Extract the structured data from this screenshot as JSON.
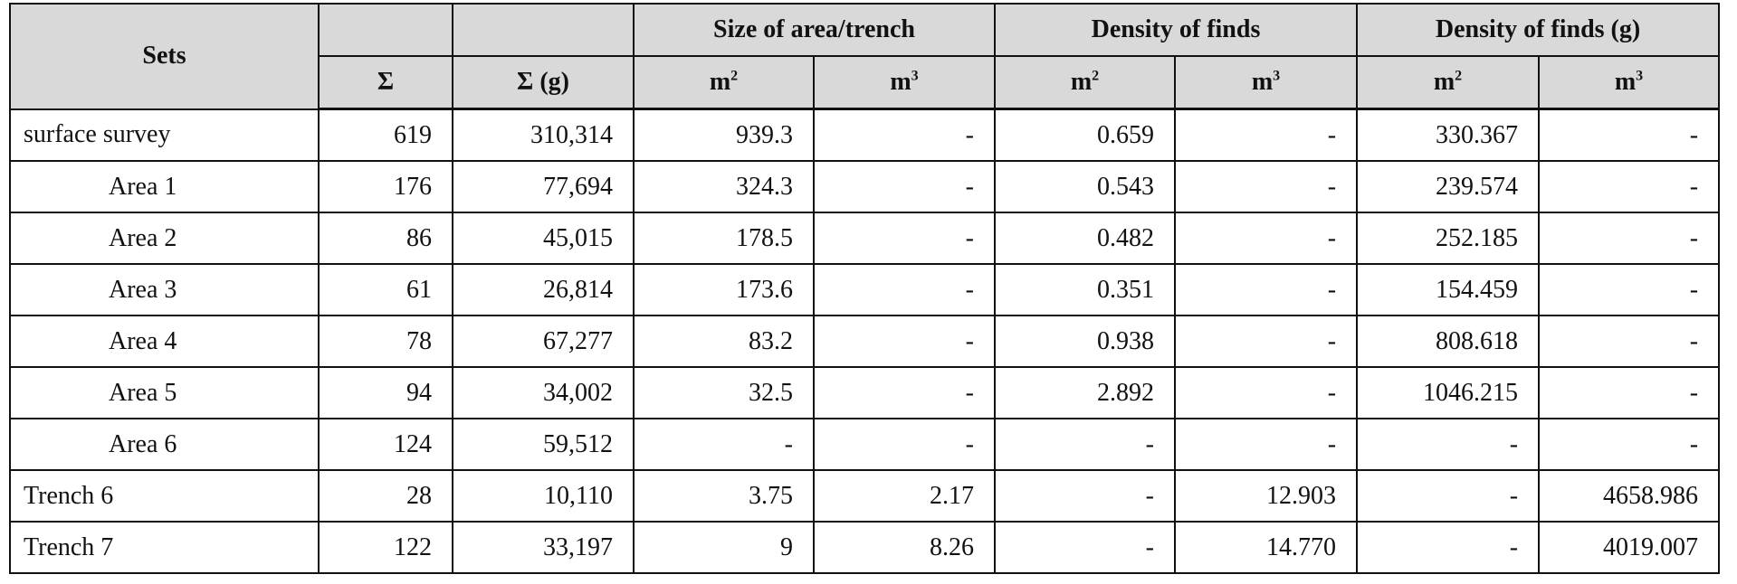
{
  "header": {
    "sets": "Sets",
    "groups": [
      "",
      "",
      "Size of area/trench",
      "Density of finds",
      "Density of finds (g)"
    ],
    "sub": [
      "Σ",
      "Σ (g)",
      "m",
      "m",
      "m",
      "m",
      "m",
      "m"
    ],
    "sub_sup": [
      "",
      "",
      "2",
      "3",
      "2",
      "3",
      "2",
      "3"
    ]
  },
  "rows": [
    {
      "label": "surface survey",
      "indent": false,
      "cells": [
        "619",
        "310,314",
        "939.3",
        "-",
        "0.659",
        "-",
        "330.367",
        "-"
      ]
    },
    {
      "label": "Area 1",
      "indent": true,
      "cells": [
        "176",
        "77,694",
        "324.3",
        "-",
        "0.543",
        "-",
        "239.574",
        "-"
      ]
    },
    {
      "label": "Area 2",
      "indent": true,
      "cells": [
        "86",
        "45,015",
        "178.5",
        "-",
        "0.482",
        "-",
        "252.185",
        "-"
      ]
    },
    {
      "label": "Area 3",
      "indent": true,
      "cells": [
        "61",
        "26,814",
        "173.6",
        "-",
        "0.351",
        "-",
        "154.459",
        "-"
      ]
    },
    {
      "label": "Area 4",
      "indent": true,
      "cells": [
        "78",
        "67,277",
        "83.2",
        "-",
        "0.938",
        "-",
        "808.618",
        "-"
      ]
    },
    {
      "label": "Area 5",
      "indent": true,
      "cells": [
        "94",
        "34,002",
        "32.5",
        "-",
        "2.892",
        "-",
        "1046.215",
        "-"
      ]
    },
    {
      "label": "Area 6",
      "indent": true,
      "cells": [
        "124",
        "59,512",
        "-",
        "-",
        "-",
        "-",
        "-",
        "-"
      ]
    },
    {
      "label": "Trench 6",
      "indent": false,
      "cells": [
        "28",
        "10,110",
        "3.75",
        "2.17",
        "-",
        "12.903",
        "-",
        "4658.986"
      ]
    },
    {
      "label": "Trench 7",
      "indent": false,
      "cells": [
        "122",
        "33,197",
        "9",
        "8.26",
        "-",
        "14.770",
        "-",
        "4019.007"
      ]
    }
  ],
  "colors": {
    "header_bg": "#d9d9d9",
    "border": "#111111"
  }
}
